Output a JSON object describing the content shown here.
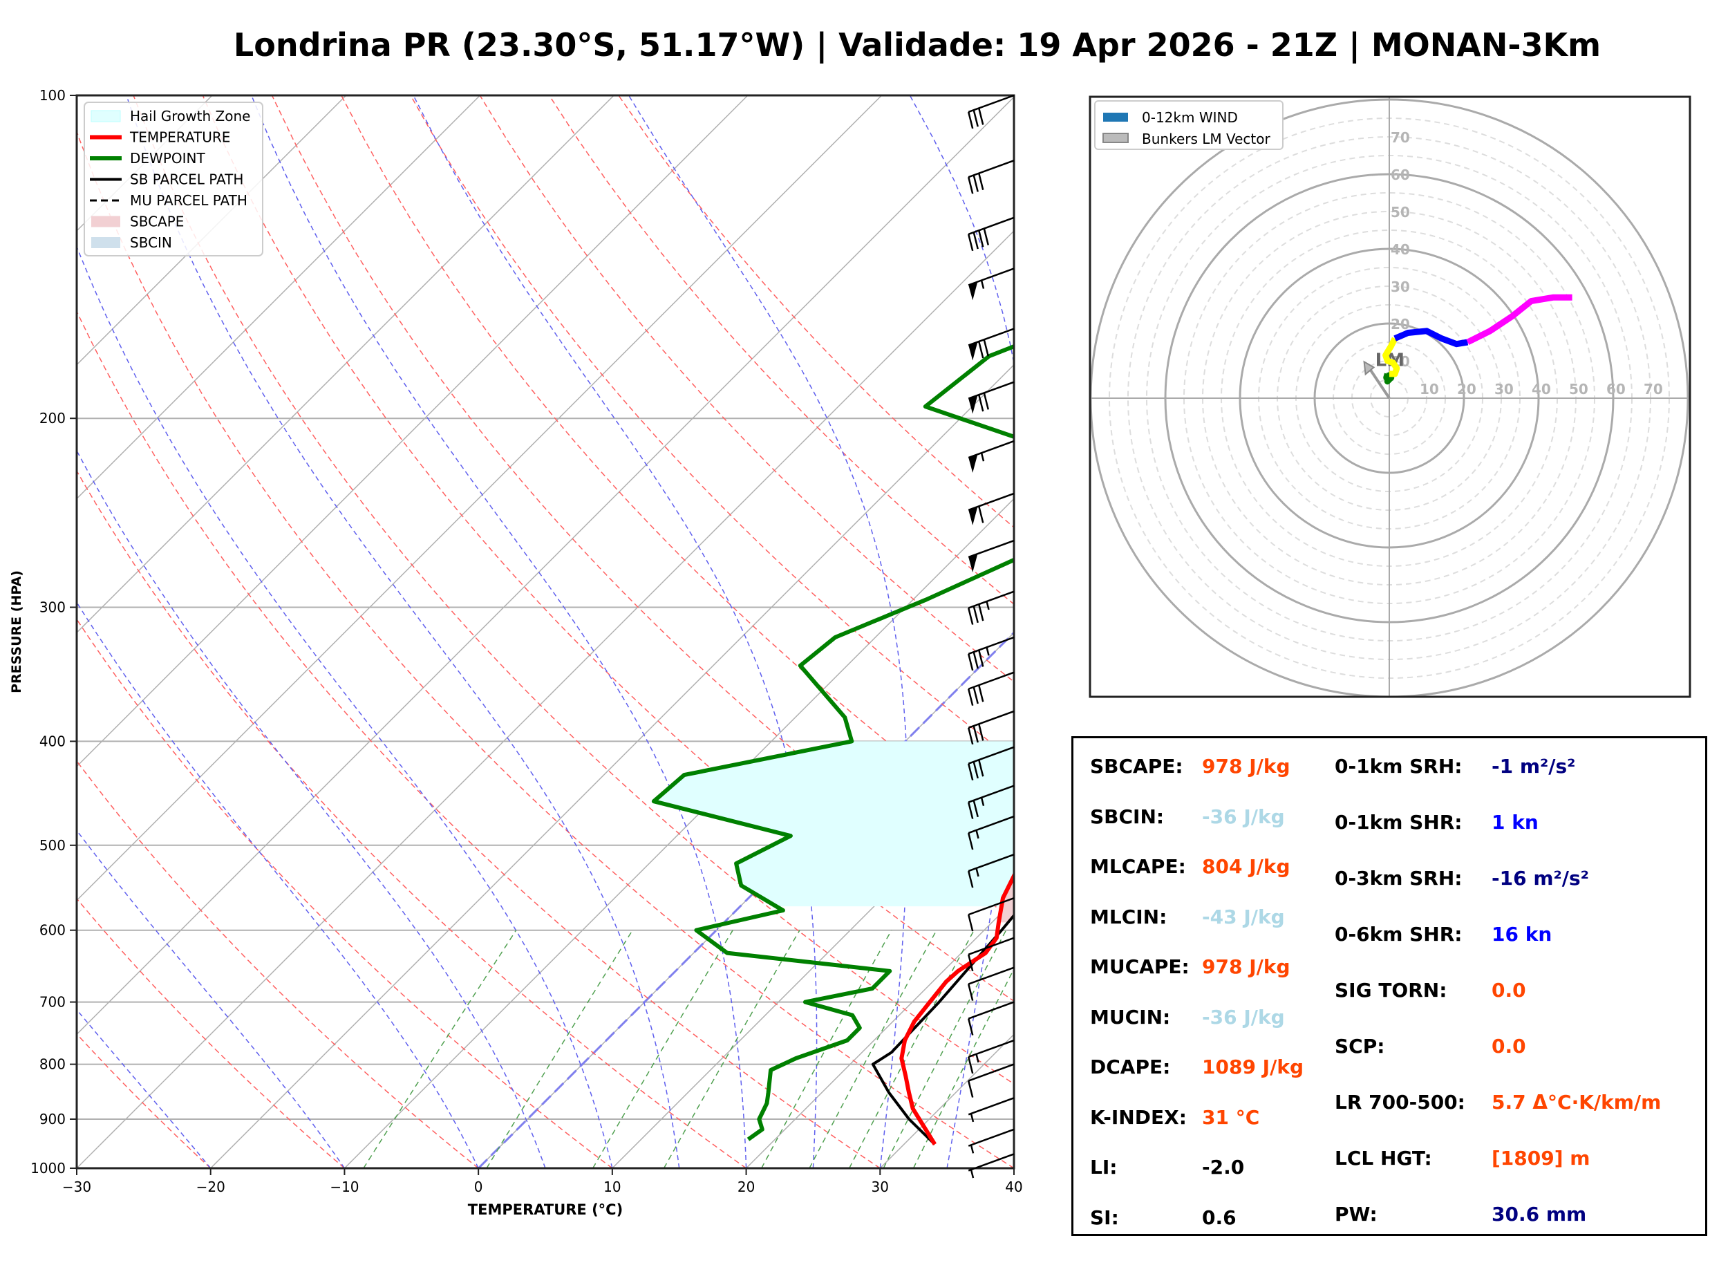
{
  "title": "Londrina PR (23.30°S, 51.17°W) | Validade: 19 Apr 2026 - 21Z | MONAN-3Km",
  "colors": {
    "temperature": "#ff0000",
    "dewpoint": "#008000",
    "parcel": "#000000",
    "sbcape_fill": "#f2d0d3",
    "hail_zone_fill": "#e0ffff",
    "orange_value": "#ff4500",
    "lightblue_value": "#add8e6",
    "navy_value": "#000080",
    "blue_value": "#0000ff"
  },
  "chart_data": [
    {
      "type": "line",
      "name": "skewt",
      "xlabel": "TEMPERATURE (°C)",
      "ylabel": "PRESSURE (HPA)",
      "xlim": [
        -30,
        40
      ],
      "ylim": [
        1000,
        100
      ],
      "x_ticks": [
        -30,
        -20,
        -10,
        0,
        10,
        20,
        30,
        40
      ],
      "x_tick_labels": [
        "−30",
        "−20",
        "−10",
        "0",
        "10",
        "20",
        "30",
        "40"
      ],
      "y_ticks": [
        100,
        200,
        300,
        400,
        500,
        600,
        700,
        800,
        900,
        1000
      ],
      "y_tick_labels": [
        "100",
        "200",
        "300",
        "400",
        "500",
        "600",
        "700",
        "800",
        "900",
        "1000"
      ],
      "legend": {
        "placement": "top-left",
        "entries": [
          "Hail Growth Zone",
          "TEMPERATURE",
          "DEWPOINT",
          "SB PARCEL PATH",
          "MU PARCEL PATH",
          "SBCAPE",
          "SBCIN"
        ]
      },
      "series": [
        {
          "name": "TEMPERATURE",
          "points": [
            [
              950,
              32.3
            ],
            [
              920,
              30.5
            ],
            [
              880,
              28.0
            ],
            [
              850,
              26.5
            ],
            [
              820,
              25.0
            ],
            [
              790,
              23.4
            ],
            [
              760,
              22.3
            ],
            [
              730,
              21.6
            ],
            [
              700,
              21.3
            ],
            [
              670,
              21.0
            ],
            [
              655,
              21.1
            ],
            [
              630,
              21.8
            ],
            [
              610,
              21.5
            ],
            [
              590,
              20.5
            ],
            [
              560,
              19.0
            ],
            [
              520,
              17.7
            ],
            [
              480,
              16.3
            ],
            [
              450,
              15.3
            ],
            [
              420,
              12.5
            ],
            [
              400,
              11.0
            ],
            [
              370,
              8.4
            ],
            [
              340,
              6.3
            ],
            [
              300,
              3.4
            ],
            [
              270,
              1.2
            ],
            [
              240,
              -1.1
            ],
            [
              220,
              -2.4
            ],
            [
              200,
              -3.6
            ],
            [
              180,
              -4.8
            ],
            [
              160,
              -6.3
            ],
            [
              140,
              -7.4
            ],
            [
              125,
              -7.8
            ],
            [
              110,
              -7.5
            ],
            [
              100,
              -7.3
            ]
          ]
        },
        {
          "name": "DEWPOINT",
          "points": [
            [
              940,
              18.0
            ],
            [
              920,
              18.3
            ],
            [
              900,
              17.3
            ],
            [
              870,
              16.7
            ],
            [
              850,
              16.0
            ],
            [
              810,
              14.5
            ],
            [
              790,
              15.5
            ],
            [
              760,
              18.0
            ],
            [
              740,
              18.0
            ],
            [
              720,
              16.5
            ],
            [
              700,
              12.0
            ],
            [
              680,
              16.0
            ],
            [
              655,
              16.0
            ],
            [
              630,
              2.5
            ],
            [
              600,
              -1.5
            ],
            [
              575,
              3.5
            ],
            [
              545,
              -1.5
            ],
            [
              520,
              -3.5
            ],
            [
              490,
              -1.5
            ],
            [
              455,
              -14.3
            ],
            [
              430,
              -14.0
            ],
            [
              400,
              -4.0
            ],
            [
              380,
              -6.3
            ],
            [
              340,
              -13.5
            ],
            [
              320,
              -13.0
            ],
            [
              295,
              -9.0
            ],
            [
              265,
              -4.5
            ],
            [
              245,
              -3.5
            ],
            [
              220,
              -7.0
            ],
            [
              195,
              -23.5
            ],
            [
              175,
              -22.5
            ],
            [
              158,
              -17.0
            ],
            [
              145,
              -20.5
            ],
            [
              128,
              -22.5
            ],
            [
              115,
              -21.5
            ],
            [
              100,
              -18.5
            ]
          ]
        },
        {
          "name": "SB PARCEL PATH",
          "points": [
            [
              950,
              32.3
            ],
            [
              900,
              28.5
            ],
            [
              850,
              25.0
            ],
            [
              800,
              21.7
            ],
            [
              780,
              22.2
            ],
            [
              700,
              22.0
            ],
            [
              600,
              21.3
            ],
            [
              550,
              20.8
            ],
            [
              500,
              19.5
            ],
            [
              450,
              17.5
            ],
            [
              400,
              14.5
            ],
            [
              350,
              10.5
            ],
            [
              300,
              5.5
            ],
            [
              250,
              -0.8
            ],
            [
              200,
              -3.8
            ],
            [
              150,
              -12.5
            ],
            [
              120,
              -18.5
            ],
            [
              100,
              -22.5
            ]
          ]
        }
      ],
      "fills": [
        {
          "name": "SBCAPE",
          "p_range": [
            590,
            205
          ]
        },
        {
          "name": "Hail Growth Zone",
          "p_range": [
            570,
            400
          ]
        }
      ],
      "wind_barbs": [
        {
          "p": 100,
          "speed_kn": 30
        },
        {
          "p": 115,
          "speed_kn": 30
        },
        {
          "p": 130,
          "speed_kn": 40
        },
        {
          "p": 145,
          "speed_kn": 55
        },
        {
          "p": 165,
          "speed_kn": 70
        },
        {
          "p": 185,
          "speed_kn": 70
        },
        {
          "p": 210,
          "speed_kn": 55
        },
        {
          "p": 235,
          "speed_kn": 60
        },
        {
          "p": 260,
          "speed_kn": 50
        },
        {
          "p": 290,
          "speed_kn": 35
        },
        {
          "p": 320,
          "speed_kn": 35
        },
        {
          "p": 345,
          "speed_kn": 30
        },
        {
          "p": 375,
          "speed_kn": 30
        },
        {
          "p": 405,
          "speed_kn": 30
        },
        {
          "p": 440,
          "speed_kn": 25
        },
        {
          "p": 470,
          "speed_kn": 15
        },
        {
          "p": 510,
          "speed_kn": 15
        },
        {
          "p": 560,
          "speed_kn": 10
        },
        {
          "p": 610,
          "speed_kn": 10
        },
        {
          "p": 650,
          "speed_kn": 10
        },
        {
          "p": 700,
          "speed_kn": 10
        },
        {
          "p": 760,
          "speed_kn": 15
        },
        {
          "p": 800,
          "speed_kn": 10
        },
        {
          "p": 860,
          "speed_kn": 5
        },
        {
          "p": 920,
          "speed_kn": 5
        },
        {
          "p": 970,
          "speed_kn": 5
        }
      ]
    },
    {
      "type": "line",
      "name": "hodograph",
      "legend": {
        "placement": "top-left",
        "entries": [
          "0-12km WIND",
          "Bunkers LM Vector"
        ]
      },
      "ring_labels": [
        "10",
        "20",
        "30",
        "40",
        "50",
        "60",
        "70"
      ],
      "rings_kn": [
        10,
        20,
        30,
        40,
        50,
        60,
        70
      ],
      "xlim": [
        -80,
        80
      ],
      "ylim": [
        -80,
        80
      ],
      "bunkers_lm": {
        "label": "LM",
        "u": -6,
        "v": 9
      },
      "segments": [
        {
          "color": "#008000",
          "points": [
            [
              -0.5,
              6.5
            ],
            [
              -0.8,
              5.5
            ],
            [
              0,
              6
            ],
            [
              -0.5,
              4.5
            ],
            [
              0.5,
              5.5
            ],
            [
              0,
              7
            ]
          ]
        },
        {
          "color": "#ffff00",
          "points": [
            [
              0,
              6.5
            ],
            [
              1.5,
              6.5
            ],
            [
              2,
              8
            ],
            [
              1,
              9.5
            ],
            [
              -0.5,
              10
            ],
            [
              -1,
              11.5
            ],
            [
              0.5,
              14
            ],
            [
              1.5,
              16
            ]
          ]
        },
        {
          "color": "#0000ff",
          "points": [
            [
              1.5,
              16
            ],
            [
              5,
              17.5
            ],
            [
              10,
              18
            ],
            [
              14,
              16
            ],
            [
              18,
              14.5
            ],
            [
              21,
              15
            ]
          ]
        },
        {
          "color": "#ff00ff",
          "points": [
            [
              21,
              15
            ],
            [
              27,
              18
            ],
            [
              33,
              22
            ],
            [
              38,
              26
            ],
            [
              44,
              27
            ],
            [
              49,
              27
            ]
          ]
        }
      ]
    }
  ],
  "stats": {
    "left": [
      {
        "label": "SBCAPE:",
        "value": "978 J/kg",
        "color": "#ff4500"
      },
      {
        "label": "SBCIN:",
        "value": "-36 J/kg",
        "color": "#add8e6"
      },
      {
        "label": "MLCAPE:",
        "value": "804 J/kg",
        "color": "#ff4500"
      },
      {
        "label": "MLCIN:",
        "value": "-43 J/kg",
        "color": "#add8e6"
      },
      {
        "label": "MUCAPE:",
        "value": "978 J/kg",
        "color": "#ff4500"
      },
      {
        "label": "MUCIN:",
        "value": "-36 J/kg",
        "color": "#add8e6"
      },
      {
        "label": "DCAPE:",
        "value": "1089 J/kg",
        "color": "#ff4500"
      },
      {
        "label": "K-INDEX:",
        "value": "31 °C",
        "color": "#ff4500"
      },
      {
        "label": "LI:",
        "value": "-2.0",
        "color": "#000000"
      },
      {
        "label": "SI:",
        "value": "0.6",
        "color": "#000000"
      }
    ],
    "right": [
      {
        "label": "0-1km SRH:",
        "value": "-1 m²/s²",
        "color": "#000080"
      },
      {
        "label": "0-1km SHR:",
        "value": "1 kn",
        "color": "#0000ff"
      },
      {
        "label": "0-3km SRH:",
        "value": "-16 m²/s²",
        "color": "#000080"
      },
      {
        "label": "0-6km SHR:",
        "value": "16 kn",
        "color": "#0000ff"
      },
      {
        "label": "SIG TORN:",
        "value": "0.0",
        "color": "#ff4500"
      },
      {
        "label": "SCP:",
        "value": "0.0",
        "color": "#ff4500"
      },
      {
        "label": "LR 700-500:",
        "value": "5.7 Δ°C·K/km/m",
        "color": "#ff4500"
      },
      {
        "label": "LCL HGT:",
        "value": "[1809] m",
        "color": "#ff4500"
      },
      {
        "label": "PW:",
        "value": "30.6 mm",
        "color": "#000080"
      }
    ]
  }
}
